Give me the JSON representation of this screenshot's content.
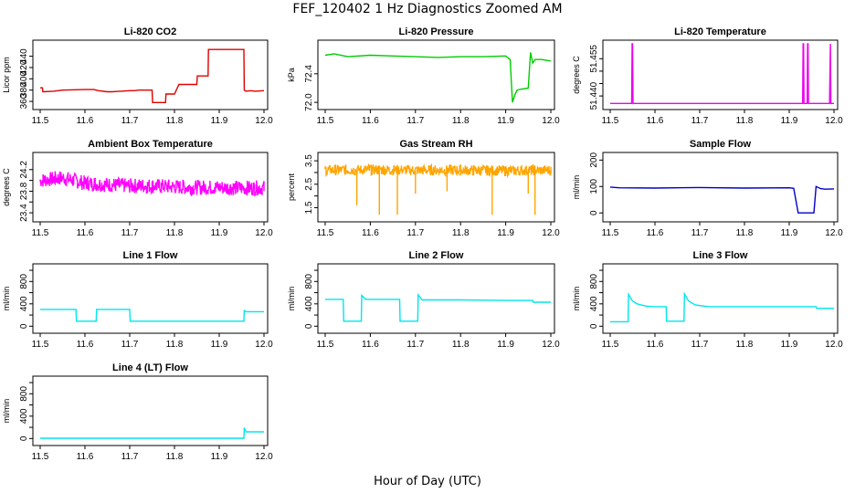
{
  "figure": {
    "title": "FEF_120402  1 Hz Diagnostics Zoomed AM",
    "xlabel": "Hour of Day (UTC)"
  },
  "chart_data": [
    {
      "type": "line",
      "title": "Li-820 CO2",
      "ylabel": "Licor ppm",
      "color": "#e00000",
      "xlim": [
        11.5,
        12.0
      ],
      "ylim": [
        352,
        462
      ],
      "xticks": [
        "11.5",
        "11.6",
        "11.7",
        "11.8",
        "11.9",
        "12.0"
      ],
      "yticks": [
        360,
        380,
        400,
        420,
        440
      ],
      "series": [
        {
          "x": [
            11.5,
            11.505,
            11.506,
            11.53,
            11.55,
            11.6,
            11.62,
            11.63,
            11.65,
            11.66,
            11.68,
            11.7,
            11.71,
            11.72,
            11.75,
            11.751,
            11.78,
            11.781,
            11.8,
            11.81,
            11.83,
            11.85,
            11.851,
            11.875,
            11.876,
            11.88,
            11.9,
            11.955,
            11.956,
            11.96,
            11.97,
            11.98,
            12.0
          ],
          "y": [
            384,
            384,
            377,
            378,
            380,
            381,
            381,
            379,
            377,
            377,
            378,
            379,
            379,
            380,
            380,
            358,
            358,
            373,
            373,
            390,
            390,
            390,
            405,
            405,
            452,
            452,
            452,
            452,
            380,
            378,
            379,
            378,
            379
          ]
        }
      ]
    },
    {
      "type": "line",
      "title": "Li-820 Pressure",
      "ylabel": "kPa",
      "color": "#00cc00",
      "xlim": [
        11.5,
        12.0
      ],
      "ylim": [
        71.95,
        72.82
      ],
      "xticks": [
        "11.5",
        "11.6",
        "11.7",
        "11.8",
        "11.9",
        "12.0"
      ],
      "yticks": [
        72.0,
        72.4
      ],
      "ytick_labels": [
        "72.0",
        "72.4"
      ],
      "series": [
        {
          "x": [
            11.5,
            11.52,
            11.55,
            11.6,
            11.65,
            11.7,
            11.75,
            11.8,
            11.85,
            11.9,
            11.91,
            11.915,
            11.92,
            11.925,
            11.93,
            11.95,
            11.955,
            11.96,
            11.965,
            11.98,
            12.0
          ],
          "y": [
            72.66,
            72.68,
            72.64,
            72.66,
            72.65,
            72.64,
            72.63,
            72.64,
            72.64,
            72.65,
            72.6,
            72.0,
            72.1,
            72.17,
            72.18,
            72.2,
            72.7,
            72.55,
            72.6,
            72.6,
            72.58
          ]
        }
      ]
    },
    {
      "type": "line",
      "title": "Li-820 Temperature",
      "ylabel": "degrees C",
      "color": "#ee00ee",
      "xlim": [
        11.5,
        12.0
      ],
      "ylim": [
        51.436,
        51.461
      ],
      "xticks": [
        "11.5",
        "11.6",
        "11.7",
        "11.8",
        "11.9",
        "12.0"
      ],
      "yticks": [
        51.44,
        51.445,
        51.45,
        51.455
      ],
      "ytick_labels": [
        "51.440",
        "",
        "",
        "51.455"
      ],
      "series": [
        {
          "x": [
            11.5,
            11.548,
            11.549,
            11.55,
            11.551,
            11.93,
            11.931,
            11.932,
            11.933,
            11.94,
            11.941,
            11.942,
            11.943,
            11.99,
            11.991,
            11.992,
            11.993,
            12.0
          ],
          "y": [
            51.437,
            51.437,
            51.461,
            51.461,
            51.437,
            51.437,
            51.461,
            51.461,
            51.437,
            51.437,
            51.461,
            51.461,
            51.437,
            51.437,
            51.45,
            51.461,
            51.437,
            51.437
          ]
        }
      ]
    },
    {
      "type": "line",
      "title": "Ambient Box Temperature",
      "ylabel": "degrees C",
      "color": "#ff00ff",
      "xlim": [
        11.5,
        12.0
      ],
      "ylim": [
        23.3,
        24.45
      ],
      "xticks": [
        "11.5",
        "11.6",
        "11.7",
        "11.8",
        "11.9",
        "12.0"
      ],
      "yticks": [
        23.4,
        23.6,
        23.8,
        24.0,
        24.2
      ],
      "ytick_labels": [
        "23.4",
        "",
        "23.8",
        "",
        "24.2"
      ],
      "series": [
        {
          "x": [
            11.5,
            11.55,
            11.6,
            11.65,
            11.7,
            11.75,
            11.8,
            11.85,
            11.9,
            11.95,
            12.0
          ],
          "y": [
            24.0,
            24.05,
            23.95,
            23.92,
            23.9,
            23.9,
            23.88,
            23.87,
            23.87,
            23.86,
            23.86
          ],
          "noise": 0.28
        }
      ]
    },
    {
      "type": "line",
      "title": "Gas Stream RH",
      "ylabel": "percent",
      "color": "#ffa500",
      "xlim": [
        11.5,
        12.0
      ],
      "ylim": [
        1.05,
        3.7
      ],
      "xticks": [
        "11.5",
        "11.6",
        "11.7",
        "11.8",
        "11.9",
        "12.0"
      ],
      "yticks": [
        1.5,
        2.0,
        2.5,
        3.0,
        3.5
      ],
      "ytick_labels": [
        "1.5",
        "",
        "2.5",
        "",
        "3.5"
      ],
      "series": [
        {
          "x": [
            11.5,
            11.6,
            11.7,
            11.8,
            11.9,
            12.0
          ],
          "y": [
            3.1,
            3.12,
            3.1,
            3.1,
            3.08,
            3.1
          ],
          "noise": 0.45,
          "spikes": [
            [
              11.57,
              1.6
            ],
            [
              11.62,
              1.2
            ],
            [
              11.66,
              1.2
            ],
            [
              11.7,
              2.1
            ],
            [
              11.77,
              2.2
            ],
            [
              11.87,
              1.2
            ],
            [
              11.95,
              2.1
            ],
            [
              11.965,
              1.2
            ]
          ]
        }
      ]
    },
    {
      "type": "line",
      "title": "Sample Flow",
      "ylabel": "ml/min",
      "color": "#0000cc",
      "xlim": [
        11.5,
        12.0
      ],
      "ylim": [
        -20,
        215
      ],
      "xticks": [
        "11.5",
        "11.6",
        "11.7",
        "11.8",
        "11.9",
        "12.0"
      ],
      "yticks": [
        0,
        100,
        200
      ],
      "series": [
        {
          "x": [
            11.5,
            11.52,
            11.6,
            11.65,
            11.7,
            11.8,
            11.9,
            11.91,
            11.92,
            11.955,
            11.96,
            11.97,
            11.98,
            12.0
          ],
          "y": [
            98,
            95,
            94,
            95,
            96,
            94,
            95,
            93,
            0,
            0,
            100,
            92,
            90,
            91
          ]
        }
      ]
    },
    {
      "type": "line",
      "title": "Line 1 Flow",
      "ylabel": "ml/min",
      "color": "#00e5ee",
      "xlim": [
        11.5,
        12.0
      ],
      "ylim": [
        -60,
        1050
      ],
      "xticks": [
        "11.5",
        "11.6",
        "11.7",
        "11.8",
        "11.9",
        "12.0"
      ],
      "yticks": [
        0,
        200,
        400,
        600,
        800,
        1000
      ],
      "ytick_labels": [
        "0",
        "",
        "400",
        "",
        "800",
        ""
      ],
      "series": [
        {
          "x": [
            11.5,
            11.58,
            11.581,
            11.625,
            11.626,
            11.7,
            11.701,
            11.955,
            11.956,
            11.96,
            12.0
          ],
          "y": [
            300,
            300,
            90,
            90,
            300,
            300,
            90,
            90,
            280,
            260,
            260
          ]
        }
      ]
    },
    {
      "type": "line",
      "title": "Line 2 Flow",
      "ylabel": "ml/min",
      "color": "#00e5ee",
      "xlim": [
        11.5,
        12.0
      ],
      "ylim": [
        -60,
        1050
      ],
      "xticks": [
        "11.5",
        "11.6",
        "11.7",
        "11.8",
        "11.9",
        "12.0"
      ],
      "yticks": [
        0,
        200,
        400,
        600,
        800,
        1000
      ],
      "ytick_labels": [
        "0",
        "",
        "400",
        "",
        "800",
        ""
      ],
      "series": [
        {
          "x": [
            11.5,
            11.54,
            11.541,
            11.58,
            11.581,
            11.59,
            11.665,
            11.666,
            11.705,
            11.706,
            11.715,
            11.8,
            11.9,
            11.96,
            11.961,
            12.0
          ],
          "y": [
            480,
            480,
            90,
            90,
            550,
            480,
            480,
            90,
            90,
            560,
            470,
            470,
            460,
            460,
            430,
            430
          ]
        }
      ]
    },
    {
      "type": "line",
      "title": "Line 3 Flow",
      "ylabel": "ml/min",
      "color": "#00e5ee",
      "xlim": [
        11.5,
        12.0
      ],
      "ylim": [
        -60,
        1050
      ],
      "xticks": [
        "11.5",
        "11.6",
        "11.7",
        "11.8",
        "11.9",
        "12.0"
      ],
      "yticks": [
        0,
        200,
        400,
        600,
        800,
        1000
      ],
      "ytick_labels": [
        "0",
        "",
        "400",
        "",
        "800",
        ""
      ],
      "series": [
        {
          "x": [
            11.5,
            11.54,
            11.541,
            11.55,
            11.56,
            11.58,
            11.6,
            11.625,
            11.626,
            11.665,
            11.666,
            11.675,
            11.69,
            11.72,
            11.8,
            11.9,
            11.96,
            11.961,
            12.0
          ],
          "y": [
            80,
            80,
            570,
            450,
            400,
            360,
            350,
            350,
            90,
            90,
            580,
            450,
            380,
            350,
            350,
            350,
            350,
            320,
            320
          ]
        }
      ]
    },
    {
      "type": "line",
      "title": "Line 4 (LT) Flow",
      "ylabel": "ml/min",
      "color": "#00e5ee",
      "xlim": [
        11.5,
        12.0
      ],
      "ylim": [
        -60,
        1050
      ],
      "xticks": [
        "11.5",
        "11.6",
        "11.7",
        "11.8",
        "11.9",
        "12.0"
      ],
      "yticks": [
        0,
        200,
        400,
        600,
        800,
        1000
      ],
      "ytick_labels": [
        "0",
        "",
        "400",
        "",
        "800",
        ""
      ],
      "series": [
        {
          "x": [
            11.5,
            11.955,
            11.956,
            11.96,
            11.97,
            12.0
          ],
          "y": [
            5,
            5,
            190,
            120,
            120,
            120
          ]
        }
      ]
    }
  ]
}
